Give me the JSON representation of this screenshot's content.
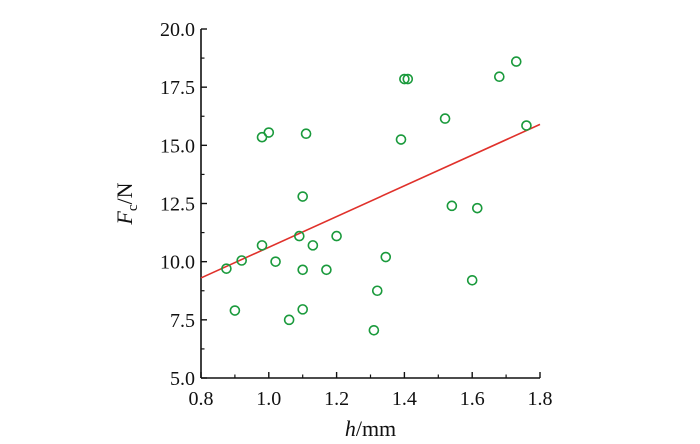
{
  "chart_data": {
    "type": "scatter",
    "xlim": [
      0.8,
      1.8
    ],
    "ylim": [
      5.0,
      20.0
    ],
    "x_ticks": [
      "0.8",
      "1.0",
      "1.2",
      "1.4",
      "1.6",
      "1.8"
    ],
    "y_ticks": [
      "5.0",
      "7.5",
      "10.0",
      "12.5",
      "15.0",
      "17.5",
      "20.0"
    ],
    "xlabel": {
      "var": "h",
      "unit": "/mm"
    },
    "ylabel": {
      "var": "F",
      "sub": "c",
      "unit": "/N"
    },
    "grid": false,
    "legend": "none",
    "colors": {
      "points": "#1a9a3c",
      "fit_line": "#e0312b",
      "axes": "#111111"
    },
    "series": [
      {
        "points": [
          [
            0.875,
            9.7
          ],
          [
            0.9,
            7.9
          ],
          [
            0.92,
            10.05
          ],
          [
            0.98,
            10.7
          ],
          [
            0.98,
            15.35
          ],
          [
            1.0,
            15.55
          ],
          [
            1.02,
            10.0
          ],
          [
            1.06,
            7.5
          ],
          [
            1.09,
            11.1
          ],
          [
            1.1,
            12.8
          ],
          [
            1.1,
            9.65
          ],
          [
            1.1,
            7.95
          ],
          [
            1.11,
            15.5
          ],
          [
            1.13,
            10.7
          ],
          [
            1.17,
            9.65
          ],
          [
            1.2,
            11.1
          ],
          [
            1.31,
            7.05
          ],
          [
            1.32,
            8.75
          ],
          [
            1.345,
            10.2
          ],
          [
            1.39,
            15.25
          ],
          [
            1.4,
            17.85
          ],
          [
            1.41,
            17.85
          ],
          [
            1.52,
            16.15
          ],
          [
            1.54,
            12.4
          ],
          [
            1.6,
            9.2
          ],
          [
            1.615,
            12.3
          ],
          [
            1.68,
            17.95
          ],
          [
            1.73,
            18.6
          ],
          [
            1.76,
            15.85
          ]
        ]
      }
    ],
    "fit_line": {
      "x": [
        0.8,
        1.8
      ],
      "y": [
        9.3,
        15.9
      ]
    }
  }
}
